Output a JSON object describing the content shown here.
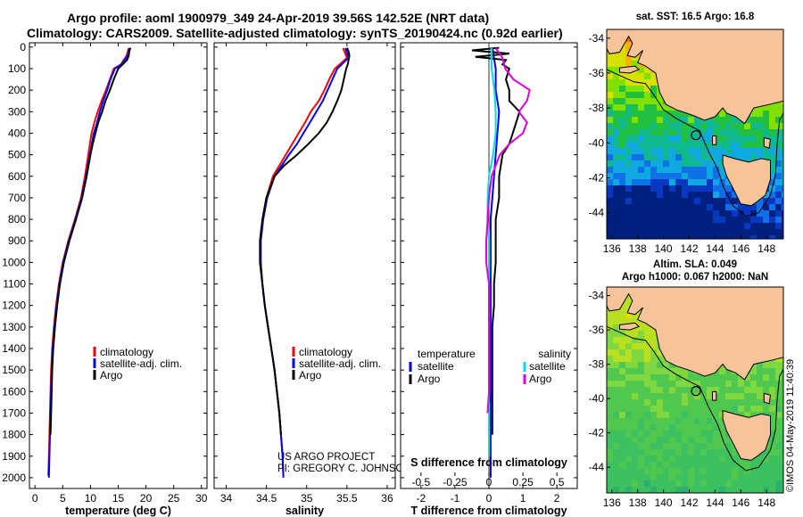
{
  "header": {
    "title_line1": "Argo profile: aoml 1900979_349 24-Apr-2019 39.56S 142.52E (NRT data)",
    "title_line2": "Climatology: CARS2009. Satellite-adjusted climatology: synTS_20190424.nc (0.92d earlier)"
  },
  "colors": {
    "climatology": "#ff0000",
    "satellite": "#0000ff",
    "argo": "#000000",
    "sal_satellite": "#00e0e0",
    "sal_clim": "#e000e0",
    "land": "#f7c49a"
  },
  "chart_data": [
    {
      "type": "line",
      "id": "temperature",
      "xlabel": "temperature (deg C)",
      "xlim": [
        -1,
        31
      ],
      "ylim": [
        2050,
        -20
      ],
      "xticks": [
        0,
        5,
        10,
        15,
        20,
        25,
        30
      ],
      "yticks": [
        0,
        100,
        200,
        300,
        400,
        500,
        600,
        700,
        800,
        900,
        1000,
        1100,
        1200,
        1300,
        1400,
        1500,
        1600,
        1700,
        1800,
        1900,
        2000
      ],
      "legend": [
        "climatology",
        "satellite-adj. clim.",
        "Argo"
      ],
      "series": [
        {
          "name": "climatology",
          "color": "#ff0000",
          "depth": [
            5,
            40,
            80,
            100,
            150,
            200,
            250,
            300,
            350,
            400,
            500,
            600,
            700,
            800,
            900,
            1000,
            1100,
            1200,
            1300,
            1400,
            1500,
            1600,
            1700,
            1800,
            1900,
            1990
          ],
          "values": [
            16.9,
            16.5,
            15.5,
            14.2,
            13.5,
            12.8,
            12.0,
            11.3,
            10.7,
            10.2,
            9.6,
            9.0,
            8.3,
            7.2,
            6.0,
            5.0,
            4.3,
            3.8,
            3.4,
            3.1,
            2.9,
            2.8,
            2.7,
            2.6,
            2.5,
            2.4
          ]
        },
        {
          "name": "satellite-adj. clim.",
          "color": "#0000ff",
          "depth": [
            5,
            40,
            80,
            100,
            150,
            200,
            250,
            300,
            350,
            400,
            500,
            600,
            700,
            800,
            900,
            1000,
            1100,
            1200,
            1300,
            1400,
            1500,
            1600,
            1700,
            1800,
            1900,
            2000
          ],
          "values": [
            17.0,
            16.7,
            15.6,
            14.4,
            13.6,
            13.0,
            12.3,
            11.7,
            11.2,
            10.6,
            9.9,
            9.2,
            8.4,
            7.3,
            6.1,
            5.1,
            4.4,
            3.9,
            3.5,
            3.2,
            3.0,
            2.9,
            2.8,
            2.7,
            2.6,
            2.5
          ]
        },
        {
          "name": "Argo",
          "color": "#000000",
          "depth": [
            3,
            20,
            40,
            60,
            80,
            100,
            150,
            200,
            250,
            300,
            350,
            400,
            450,
            500,
            600,
            700,
            800,
            900,
            1000,
            1100,
            1200,
            1300,
            1400,
            1500,
            1600,
            1700,
            1800
          ],
          "values": [
            17.2,
            17.0,
            16.9,
            16.6,
            15.8,
            15.0,
            14.2,
            13.5,
            12.7,
            12.1,
            11.4,
            10.9,
            10.4,
            10.0,
            9.3,
            8.5,
            7.4,
            6.2,
            5.2,
            4.5,
            4.0,
            3.6,
            3.3,
            3.1,
            3.0,
            2.9,
            2.8
          ]
        }
      ]
    },
    {
      "type": "line",
      "id": "salinity",
      "xlabel": "salinity",
      "xlim": [
        33.85,
        36.1
      ],
      "ylim": [
        2050,
        -20
      ],
      "xticks": [
        34,
        34.5,
        35,
        35.5,
        36
      ],
      "xtick_labels": [
        "34",
        "34.5",
        "35",
        "35.5",
        "36"
      ],
      "legend": [
        "climatology",
        "satellite-adj. clim.",
        "Argo"
      ],
      "series": [
        {
          "name": "climatology",
          "color": "#ff0000",
          "depth": [
            5,
            50,
            100,
            150,
            200,
            250,
            300,
            350,
            400,
            450,
            500,
            550,
            600,
            700,
            800,
            900,
            1000,
            1100,
            1200,
            1300,
            1400,
            1500,
            1600,
            1700,
            1800,
            1900,
            1990
          ],
          "values": [
            35.45,
            35.5,
            35.35,
            35.28,
            35.22,
            35.15,
            35.05,
            34.98,
            34.9,
            34.82,
            34.74,
            34.66,
            34.58,
            34.5,
            34.45,
            34.42,
            34.42,
            34.45,
            34.48,
            34.52,
            34.56,
            34.6,
            34.63,
            34.66,
            34.68,
            34.7,
            34.71
          ]
        },
        {
          "name": "satellite-adj. clim.",
          "color": "#0000ff",
          "depth": [
            5,
            50,
            100,
            150,
            200,
            250,
            300,
            350,
            400,
            450,
            500,
            550,
            600,
            700,
            800,
            900,
            1000,
            1100,
            1200,
            1300,
            1400,
            1500,
            1600,
            1700,
            1800,
            1900,
            2000
          ],
          "values": [
            35.48,
            35.52,
            35.38,
            35.32,
            35.26,
            35.2,
            35.12,
            35.04,
            34.96,
            34.88,
            34.78,
            34.69,
            34.6,
            34.51,
            34.46,
            34.43,
            34.43,
            34.45,
            34.48,
            34.52,
            34.56,
            34.6,
            34.63,
            34.66,
            34.68,
            34.7,
            34.71
          ]
        },
        {
          "name": "Argo",
          "color": "#000000",
          "depth": [
            3,
            20,
            40,
            60,
            80,
            100,
            150,
            200,
            250,
            300,
            350,
            400,
            450,
            500,
            550,
            600,
            700,
            800,
            900,
            1000,
            1100,
            1200,
            1300,
            1400,
            1500,
            1600,
            1700,
            1800
          ],
          "values": [
            35.5,
            35.52,
            35.53,
            35.52,
            35.51,
            35.49,
            35.46,
            35.43,
            35.38,
            35.32,
            35.25,
            35.15,
            35.02,
            34.88,
            34.72,
            34.6,
            34.5,
            34.45,
            34.42,
            34.42,
            34.45,
            34.48,
            34.52,
            34.56,
            34.6,
            34.63,
            34.66,
            34.68
          ]
        }
      ]
    },
    {
      "type": "line",
      "id": "differences",
      "xlabel": "T difference from climatology",
      "xlabel_top": "S difference from climatology",
      "xlim": [
        -2.6,
        2.6
      ],
      "ylim": [
        2050,
        -20
      ],
      "xticks": [
        -2,
        -1,
        0,
        1,
        2
      ],
      "xticks_top": [
        -0.5,
        -0.25,
        0,
        0.25,
        0.5
      ],
      "xtick_labels_top": [
        "-0.5",
        "-0.25",
        "0",
        "0.25",
        "0.5"
      ],
      "legend_left_title": "temperature",
      "legend_right_title": "salinity",
      "legend_left": [
        "satellite",
        "Argo"
      ],
      "legend_right": [
        "satellite",
        "Argo"
      ],
      "series": [
        {
          "name": "temperature satellite",
          "color": "#0000ff",
          "depth": [
            5,
            100,
            200,
            300,
            400,
            500,
            600,
            700,
            800,
            900,
            1000,
            1200,
            1400,
            1600,
            1800,
            2000
          ],
          "values": [
            0.1,
            0.2,
            0.2,
            0.3,
            0.25,
            0.2,
            0.15,
            0.1,
            0.05,
            0.05,
            0.05,
            0.05,
            0.05,
            0.05,
            0.05,
            0.05
          ]
        },
        {
          "name": "temperature Argo",
          "color": "#000000",
          "depth": [
            3,
            15,
            30,
            45,
            60,
            80,
            100,
            150,
            200,
            250,
            300,
            350,
            400,
            450,
            500,
            600,
            700,
            800,
            900,
            1000,
            1100,
            1200,
            1300,
            1400,
            1500,
            1600,
            1700,
            1800
          ],
          "values": [
            0.3,
            -0.5,
            0.6,
            -0.4,
            0.5,
            0.4,
            0.6,
            0.5,
            0.6,
            0.6,
            0.9,
            0.8,
            0.7,
            0.6,
            0.4,
            0.3,
            0.3,
            0.2,
            0.2,
            0.2,
            0.15,
            0.15,
            0.1,
            0.1,
            0.1,
            0.1,
            0.1,
            0.1
          ]
        },
        {
          "name": "salinity satellite",
          "color": "#00e0e0",
          "depth": [
            5,
            100,
            200,
            300,
            400,
            500,
            600,
            700,
            800,
            900,
            1000,
            1200,
            1400,
            1600,
            1800,
            1900
          ],
          "values": [
            0.02,
            0.02,
            0.04,
            0.05,
            0.05,
            0.03,
            0.0,
            -0.01,
            -0.01,
            0.0,
            0.0,
            0.0,
            0.0,
            0.0,
            0.0,
            0.0
          ]
        },
        {
          "name": "salinity Argo",
          "color": "#e000e0",
          "depth": [
            5,
            50,
            100,
            150,
            200,
            250,
            300,
            350,
            400,
            450,
            500,
            600,
            700,
            800,
            900,
            1000,
            1100,
            1200,
            1300,
            1400,
            1500,
            1600,
            1700
          ],
          "values": [
            0.05,
            0.1,
            0.12,
            0.18,
            0.3,
            0.28,
            0.22,
            0.28,
            0.25,
            0.15,
            0.08,
            0.02,
            0.0,
            -0.01,
            -0.02,
            -0.02,
            0.0,
            0.0,
            0.0,
            0.0,
            0.0,
            0.0,
            -0.01
          ]
        }
      ]
    },
    {
      "type": "heatmap",
      "id": "map-sst",
      "title": "sat. SST: 16.5 Argo: 16.8",
      "xticks": [
        136,
        138,
        140,
        142,
        144,
        146,
        148
      ],
      "yticks": [
        -34,
        -36,
        -38,
        -40,
        -42,
        -44
      ],
      "xlim": [
        135.6,
        149.3
      ],
      "ylim": [
        -45.5,
        -33.5
      ],
      "float_position": [
        142.52,
        -39.56
      ]
    },
    {
      "type": "heatmap",
      "id": "map-sla",
      "title_line1": "Altim. SLA: 0.049",
      "title_line2": "Argo h1000: 0.067 h2000: NaN",
      "xticks": [
        136,
        138,
        140,
        142,
        144,
        146,
        148
      ],
      "yticks": [
        -34,
        -36,
        -38,
        -40,
        -42,
        -44
      ],
      "xlim": [
        135.6,
        149.3
      ],
      "ylim": [
        -45.5,
        -33.5
      ],
      "float_position": [
        142.52,
        -39.56
      ]
    }
  ],
  "labels": {
    "project_line1": "US ARGO PROJECT",
    "project_line2": "PI: GREGORY C. JOHNSON",
    "stamp": "©IMOS 04-May-2019 11:40:39"
  }
}
